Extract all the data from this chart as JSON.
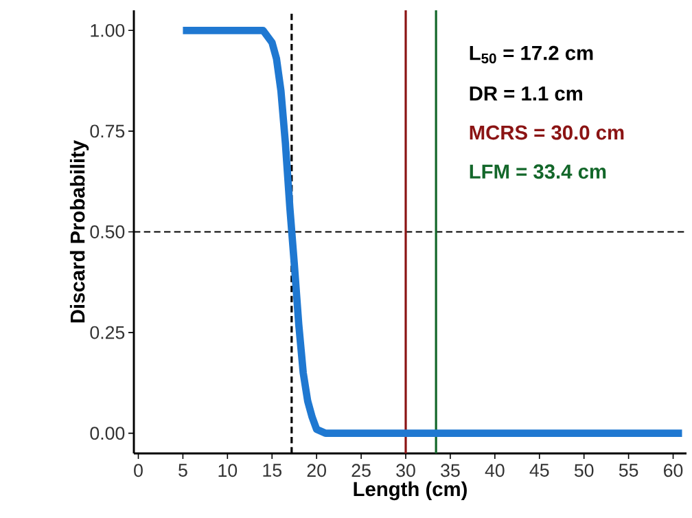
{
  "chart_data": {
    "type": "line",
    "xlabel": "Length (cm)",
    "ylabel": "Discard Probability",
    "xlim": [
      -0.5,
      61.5
    ],
    "ylim": [
      -0.05,
      1.05
    ],
    "xticks": [
      0,
      5,
      10,
      15,
      20,
      25,
      30,
      35,
      40,
      45,
      50,
      55,
      60
    ],
    "yticks": [
      {
        "value": 0,
        "label": "0.00"
      },
      {
        "value": 0.25,
        "label": "0.25"
      },
      {
        "value": 0.5,
        "label": "0.50"
      },
      {
        "value": 0.75,
        "label": "0.75"
      },
      {
        "value": 1,
        "label": "1.00"
      }
    ],
    "x": [
      5,
      10,
      14,
      15,
      15.5,
      16,
      16.5,
      17,
      17.5,
      18,
      18.5,
      19,
      19.5,
      20,
      21,
      30,
      40,
      50,
      61
    ],
    "series": [
      {
        "color": "#1f78d1",
        "line_style": "solid",
        "values": [
          1,
          1,
          1,
          0.97,
          0.93,
          0.85,
          0.72,
          0.56,
          0.42,
          0.27,
          0.15,
          0.08,
          0.04,
          0.01,
          0,
          0,
          0,
          0,
          0
        ]
      }
    ],
    "ref_lines": [
      {
        "axis": "x",
        "value": 17.2,
        "label": "L$_{50}$ = 17.2 cm",
        "color": "#000000",
        "line_style": "dashed"
      },
      {
        "axis": "y",
        "value": 0.5,
        "color": "#000000",
        "line_style": "dashed"
      },
      {
        "axis": "x",
        "value": 30.0,
        "label": "MCRS = 30.0 cm",
        "color": "#8b1414",
        "line_style": "solid"
      },
      {
        "axis": "x",
        "value": 33.4,
        "label": "LFM = 33.4 cm",
        "color": "#13672a",
        "line_style": "solid"
      }
    ],
    "annotations": [
      "DR = 1.1 cm"
    ],
    "grid": false,
    "marker": "none"
  }
}
